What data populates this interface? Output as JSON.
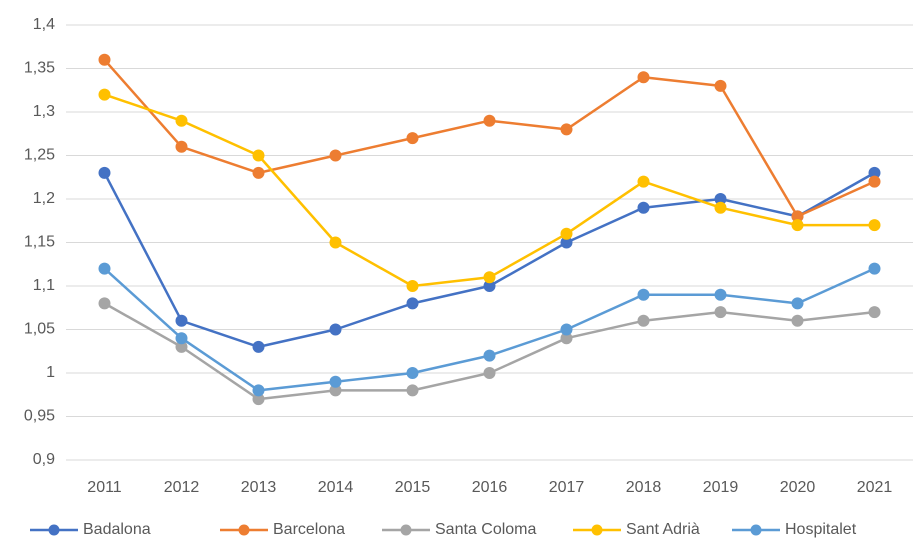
{
  "chart_data": {
    "type": "line",
    "categories": [
      "2011",
      "2012",
      "2013",
      "2014",
      "2015",
      "2016",
      "2017",
      "2018",
      "2019",
      "2020",
      "2021"
    ],
    "series": [
      {
        "name": "Badalona",
        "color": "#4472c4",
        "values": [
          1.23,
          1.06,
          1.03,
          1.05,
          1.08,
          1.1,
          1.15,
          1.19,
          1.2,
          1.18,
          1.23
        ]
      },
      {
        "name": "Barcelona",
        "color": "#ed7d31",
        "values": [
          1.36,
          1.26,
          1.23,
          1.25,
          1.27,
          1.29,
          1.28,
          1.34,
          1.33,
          1.18,
          1.22
        ]
      },
      {
        "name": "Santa Coloma",
        "color": "#a5a5a5",
        "values": [
          1.08,
          1.03,
          0.97,
          0.98,
          0.98,
          1.0,
          1.04,
          1.06,
          1.07,
          1.06,
          1.07
        ]
      },
      {
        "name": "Sant Adrià",
        "color": "#ffc000",
        "values": [
          1.32,
          1.29,
          1.25,
          1.15,
          1.1,
          1.11,
          1.16,
          1.22,
          1.19,
          1.17,
          1.17
        ]
      },
      {
        "name": "Hospitalet",
        "color": "#5b9bd5",
        "values": [
          1.12,
          1.04,
          0.98,
          0.99,
          1.0,
          1.02,
          1.05,
          1.09,
          1.09,
          1.08,
          1.12
        ]
      }
    ],
    "ylim": [
      0.9,
      1.4
    ],
    "yticks": [
      {
        "value": 0.9,
        "label": "0,9"
      },
      {
        "value": 0.95,
        "label": "0,95"
      },
      1,
      {
        "value": 1.05,
        "label": "1,05"
      },
      {
        "value": 1.1,
        "label": "1,1"
      },
      {
        "value": 1.15,
        "label": "1,15"
      },
      {
        "value": 1.2,
        "label": "1,2"
      },
      {
        "value": 1.25,
        "label": "1,25"
      },
      {
        "value": 1.3,
        "label": "1,3"
      },
      {
        "value": 1.35,
        "label": "1,35"
      },
      {
        "value": 1.4,
        "label": "1,4"
      }
    ],
    "grid": true,
    "legend": "bottom"
  }
}
